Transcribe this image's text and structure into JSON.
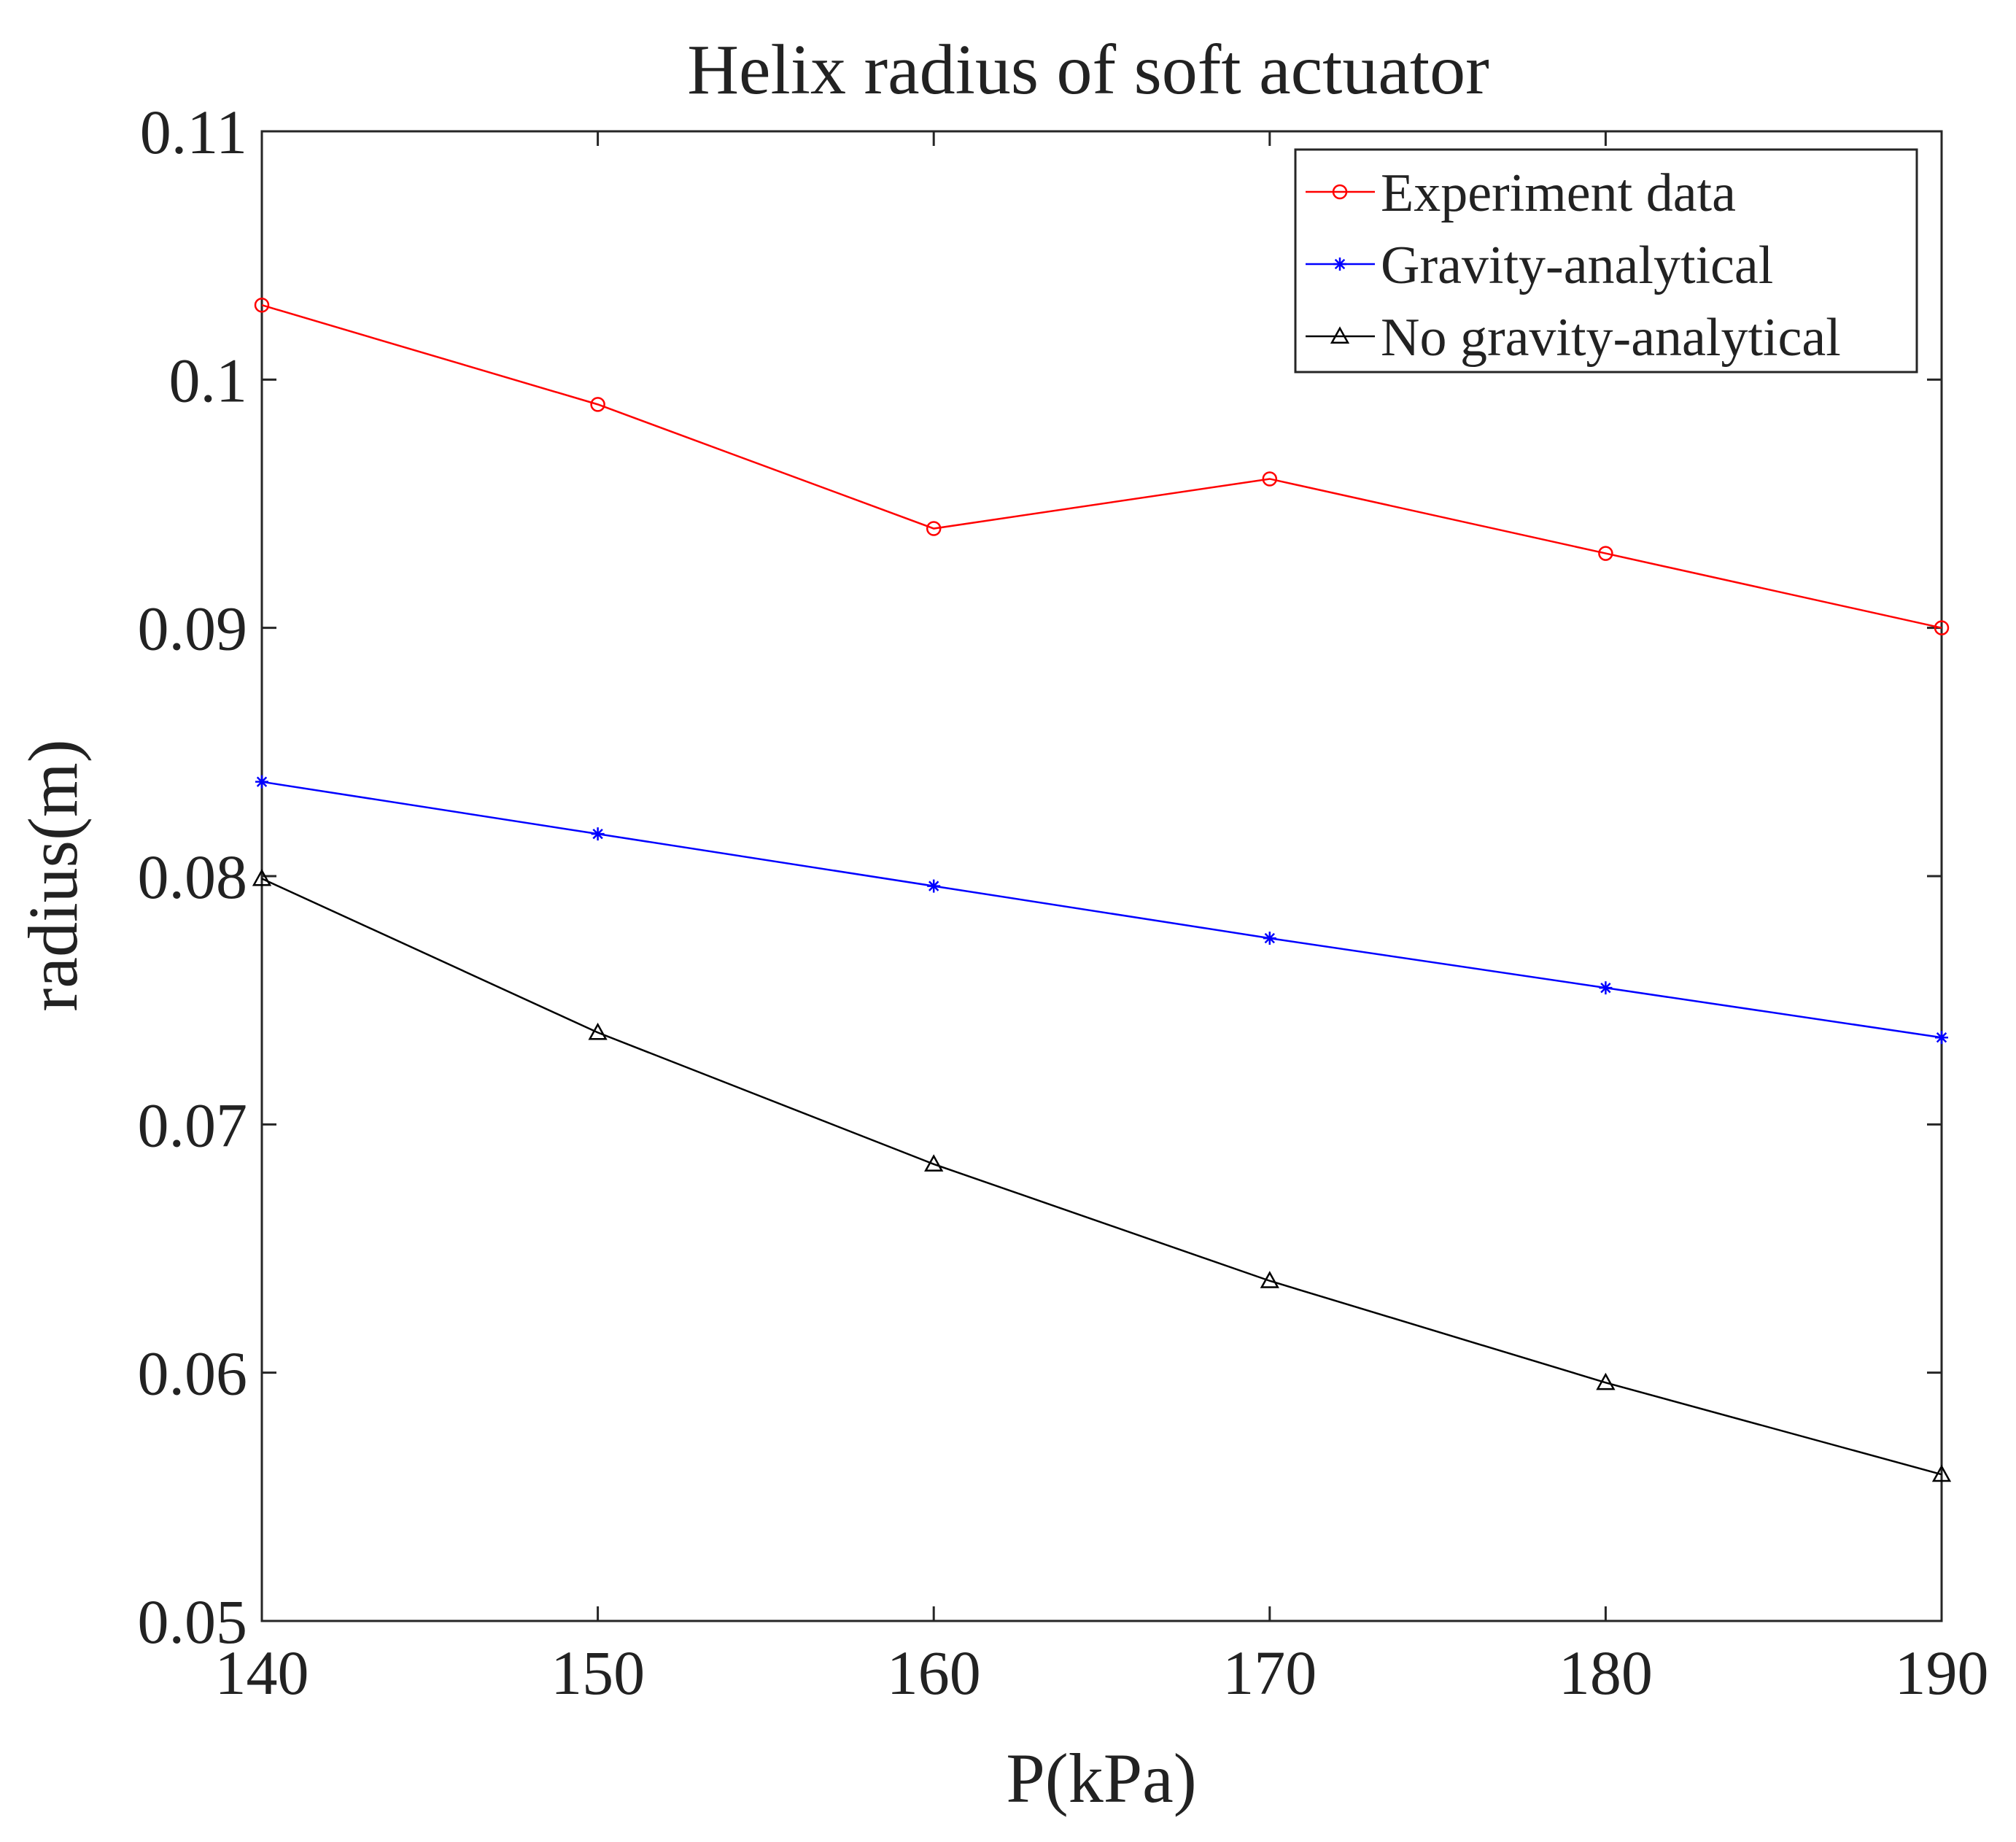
{
  "chart_data": {
    "type": "line",
    "title": "Helix radius of soft actuator",
    "xlabel": "P(kPa)",
    "ylabel": "radius(m)",
    "x": [
      140,
      150,
      160,
      170,
      180,
      190
    ],
    "xlim": [
      140,
      190
    ],
    "ylim": [
      0.05,
      0.11
    ],
    "xticks": [
      140,
      150,
      160,
      170,
      180,
      190
    ],
    "xtick_labels": [
      "140",
      "150",
      "160",
      "170",
      "180",
      "190"
    ],
    "yticks": [
      0.05,
      0.06,
      0.07,
      0.08,
      0.09,
      0.1,
      0.11
    ],
    "ytick_labels": [
      "0.05",
      "0.06",
      "0.07",
      "0.08",
      "0.09",
      "0.1",
      "0.11"
    ],
    "grid": false,
    "legend_position": "top-right",
    "series": [
      {
        "name": "Experiment data",
        "marker": "circle",
        "color": "#ff0000",
        "values": [
          0.103,
          0.099,
          0.094,
          0.096,
          0.093,
          0.09
        ]
      },
      {
        "name": "Gravity-analytical",
        "marker": "asterisk",
        "color": "#0000ff",
        "values": [
          0.0838,
          0.0817,
          0.0796,
          0.0775,
          0.0755,
          0.0735
        ]
      },
      {
        "name": "No gravity-analytical",
        "marker": "triangle",
        "color": "#000000",
        "values": [
          0.0799,
          0.0737,
          0.0684,
          0.0637,
          0.0596,
          0.0559
        ]
      }
    ]
  }
}
